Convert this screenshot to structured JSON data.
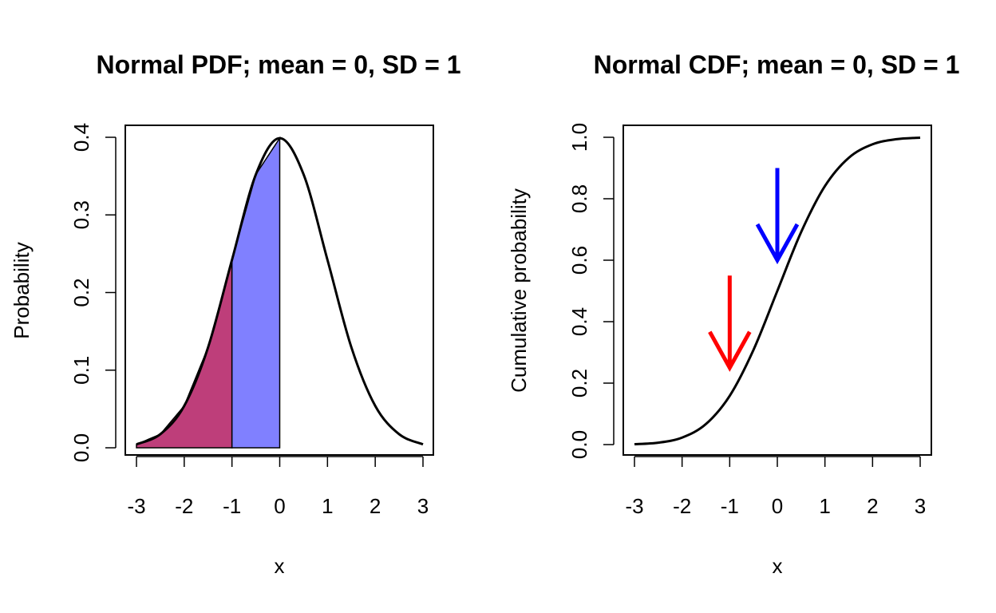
{
  "chart_data": [
    {
      "type": "area",
      "title": "Normal PDF; mean = 0, SD = 1",
      "xlabel": "x",
      "ylabel": "Probability",
      "xlim": [
        -3,
        3
      ],
      "ylim": [
        0,
        0.4
      ],
      "x_ticks": [
        "-3",
        "-2",
        "-1",
        "0",
        "1",
        "2",
        "3"
      ],
      "y_ticks": [
        "0.0",
        "0.1",
        "0.2",
        "0.3",
        "0.4"
      ],
      "mean": 0,
      "sd": 1,
      "series": [
        {
          "x": [
            -3,
            -2.5,
            -2,
            -1.5,
            -1,
            -0.5,
            0,
            0.5,
            1,
            1.5,
            2,
            2.5,
            3
          ],
          "values": [
            0.0044,
            0.0175,
            0.054,
            0.1295,
            0.242,
            0.3521,
            0.3989,
            0.3521,
            0.242,
            0.1295,
            0.054,
            0.0175,
            0.0044
          ]
        }
      ],
      "shaded_regions": [
        {
          "from": -3,
          "to": -1,
          "color": "#BE3E7A"
        },
        {
          "from": -1,
          "to": 0,
          "color": "#8080FF"
        }
      ],
      "grid": false
    },
    {
      "type": "line",
      "title": "Normal CDF; mean = 0, SD = 1",
      "xlabel": "x",
      "ylabel": "Cumulative probability",
      "xlim": [
        -3,
        3
      ],
      "ylim": [
        0,
        1
      ],
      "x_ticks": [
        "-3",
        "-2",
        "-1",
        "0",
        "1",
        "2",
        "3"
      ],
      "y_ticks": [
        "0.0",
        "0.2",
        "0.4",
        "0.6",
        "0.8",
        "1.0"
      ],
      "mean": 0,
      "sd": 1,
      "series": [
        {
          "x": [
            -3,
            -2.5,
            -2,
            -1.5,
            -1,
            -0.5,
            0,
            0.5,
            1,
            1.5,
            2,
            2.5,
            3
          ],
          "values": [
            0.0013,
            0.0062,
            0.0228,
            0.0668,
            0.1587,
            0.3085,
            0.5,
            0.6915,
            0.8413,
            0.9332,
            0.9772,
            0.9938,
            0.9987
          ]
        }
      ],
      "annotations": [
        {
          "type": "arrow",
          "x": -1,
          "y_from": 0.55,
          "y_to": 0.25,
          "color": "#FF0000"
        },
        {
          "type": "arrow",
          "x": 0,
          "y_from": 0.9,
          "y_to": 0.6,
          "color": "#0000FF"
        }
      ],
      "grid": false
    }
  ]
}
